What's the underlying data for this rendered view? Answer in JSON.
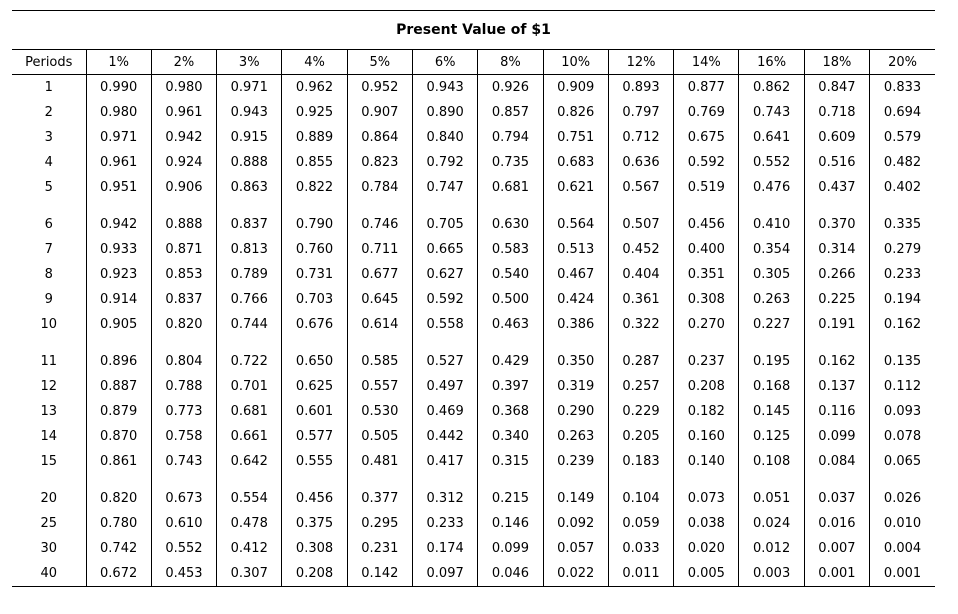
{
  "title": "Present Value of $1",
  "headers": [
    "Periods",
    "1%",
    "2%",
    "3%",
    "4%",
    "5%",
    "6%",
    "8%",
    "10%",
    "12%",
    "14%",
    "16%",
    "18%",
    "20%"
  ],
  "groups": [
    [
      {
        "period": "1",
        "values": [
          "0.990",
          "0.980",
          "0.971",
          "0.962",
          "0.952",
          "0.943",
          "0.926",
          "0.909",
          "0.893",
          "0.877",
          "0.862",
          "0.847",
          "0.833"
        ]
      },
      {
        "period": "2",
        "values": [
          "0.980",
          "0.961",
          "0.943",
          "0.925",
          "0.907",
          "0.890",
          "0.857",
          "0.826",
          "0.797",
          "0.769",
          "0.743",
          "0.718",
          "0.694"
        ]
      },
      {
        "period": "3",
        "values": [
          "0.971",
          "0.942",
          "0.915",
          "0.889",
          "0.864",
          "0.840",
          "0.794",
          "0.751",
          "0.712",
          "0.675",
          "0.641",
          "0.609",
          "0.579"
        ]
      },
      {
        "period": "4",
        "values": [
          "0.961",
          "0.924",
          "0.888",
          "0.855",
          "0.823",
          "0.792",
          "0.735",
          "0.683",
          "0.636",
          "0.592",
          "0.552",
          "0.516",
          "0.482"
        ]
      },
      {
        "period": "5",
        "values": [
          "0.951",
          "0.906",
          "0.863",
          "0.822",
          "0.784",
          "0.747",
          "0.681",
          "0.621",
          "0.567",
          "0.519",
          "0.476",
          "0.437",
          "0.402"
        ]
      }
    ],
    [
      {
        "period": "6",
        "values": [
          "0.942",
          "0.888",
          "0.837",
          "0.790",
          "0.746",
          "0.705",
          "0.630",
          "0.564",
          "0.507",
          "0.456",
          "0.410",
          "0.370",
          "0.335"
        ]
      },
      {
        "period": "7",
        "values": [
          "0.933",
          "0.871",
          "0.813",
          "0.760",
          "0.711",
          "0.665",
          "0.583",
          "0.513",
          "0.452",
          "0.400",
          "0.354",
          "0.314",
          "0.279"
        ]
      },
      {
        "period": "8",
        "values": [
          "0.923",
          "0.853",
          "0.789",
          "0.731",
          "0.677",
          "0.627",
          "0.540",
          "0.467",
          "0.404",
          "0.351",
          "0.305",
          "0.266",
          "0.233"
        ]
      },
      {
        "period": "9",
        "values": [
          "0.914",
          "0.837",
          "0.766",
          "0.703",
          "0.645",
          "0.592",
          "0.500",
          "0.424",
          "0.361",
          "0.308",
          "0.263",
          "0.225",
          "0.194"
        ]
      },
      {
        "period": "10",
        "values": [
          "0.905",
          "0.820",
          "0.744",
          "0.676",
          "0.614",
          "0.558",
          "0.463",
          "0.386",
          "0.322",
          "0.270",
          "0.227",
          "0.191",
          "0.162"
        ]
      }
    ],
    [
      {
        "period": "11",
        "values": [
          "0.896",
          "0.804",
          "0.722",
          "0.650",
          "0.585",
          "0.527",
          "0.429",
          "0.350",
          "0.287",
          "0.237",
          "0.195",
          "0.162",
          "0.135"
        ]
      },
      {
        "period": "12",
        "values": [
          "0.887",
          "0.788",
          "0.701",
          "0.625",
          "0.557",
          "0.497",
          "0.397",
          "0.319",
          "0.257",
          "0.208",
          "0.168",
          "0.137",
          "0.112"
        ]
      },
      {
        "period": "13",
        "values": [
          "0.879",
          "0.773",
          "0.681",
          "0.601",
          "0.530",
          "0.469",
          "0.368",
          "0.290",
          "0.229",
          "0.182",
          "0.145",
          "0.116",
          "0.093"
        ]
      },
      {
        "period": "14",
        "values": [
          "0.870",
          "0.758",
          "0.661",
          "0.577",
          "0.505",
          "0.442",
          "0.340",
          "0.263",
          "0.205",
          "0.160",
          "0.125",
          "0.099",
          "0.078"
        ]
      },
      {
        "period": "15",
        "values": [
          "0.861",
          "0.743",
          "0.642",
          "0.555",
          "0.481",
          "0.417",
          "0.315",
          "0.239",
          "0.183",
          "0.140",
          "0.108",
          "0.084",
          "0.065"
        ]
      }
    ],
    [
      {
        "period": "20",
        "values": [
          "0.820",
          "0.673",
          "0.554",
          "0.456",
          "0.377",
          "0.312",
          "0.215",
          "0.149",
          "0.104",
          "0.073",
          "0.051",
          "0.037",
          "0.026"
        ]
      },
      {
        "period": "25",
        "values": [
          "0.780",
          "0.610",
          "0.478",
          "0.375",
          "0.295",
          "0.233",
          "0.146",
          "0.092",
          "0.059",
          "0.038",
          "0.024",
          "0.016",
          "0.010"
        ]
      },
      {
        "period": "30",
        "values": [
          "0.742",
          "0.552",
          "0.412",
          "0.308",
          "0.231",
          "0.174",
          "0.099",
          "0.057",
          "0.033",
          "0.020",
          "0.012",
          "0.007",
          "0.004"
        ]
      },
      {
        "period": "40",
        "values": [
          "0.672",
          "0.453",
          "0.307",
          "0.208",
          "0.142",
          "0.097",
          "0.046",
          "0.022",
          "0.011",
          "0.005",
          "0.003",
          "0.001",
          "0.001"
        ]
      }
    ]
  ]
}
